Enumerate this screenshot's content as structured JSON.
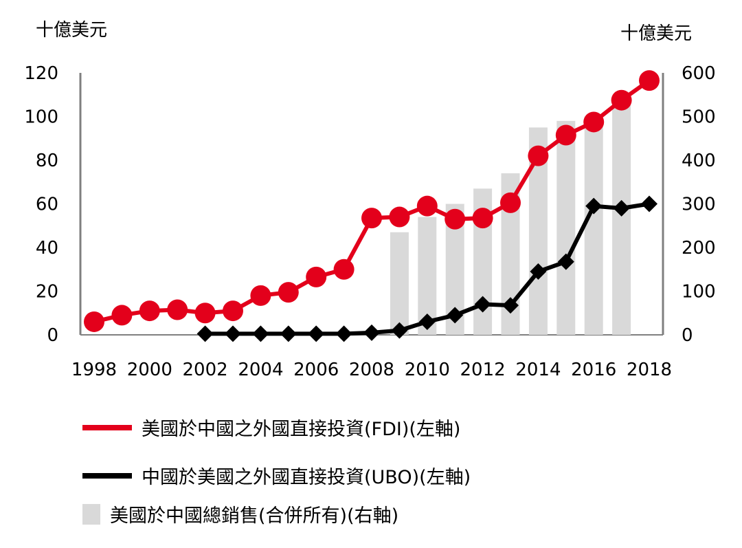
{
  "chart_data": {
    "type": "bar+line",
    "left_axis_unit": "十億美元",
    "right_axis_unit": "十億美元",
    "x": [
      1998,
      1999,
      2000,
      2001,
      2002,
      2003,
      2004,
      2005,
      2006,
      2007,
      2008,
      2009,
      2010,
      2011,
      2012,
      2013,
      2014,
      2015,
      2016,
      2017,
      2018
    ],
    "x_tick_labels": [
      "1998",
      "2000",
      "2002",
      "2004",
      "2006",
      "2008",
      "2010",
      "2012",
      "2014",
      "2016",
      "2018"
    ],
    "left_ylim": [
      0,
      120
    ],
    "left_yticks": [
      0,
      20,
      40,
      60,
      80,
      100,
      120
    ],
    "right_ylim": [
      0,
      600
    ],
    "right_yticks": [
      0,
      100,
      200,
      300,
      400,
      500,
      600
    ],
    "series": [
      {
        "name": "美國於中國之外國直接投資(FDI)(左軸)",
        "type": "line",
        "axis": "left",
        "color": "#e3001b",
        "marker": "circle",
        "values": [
          6,
          9,
          11,
          11.5,
          10,
          11,
          18,
          19.5,
          26.5,
          30,
          53.5,
          54,
          59,
          53,
          53.5,
          60.5,
          82,
          91.5,
          97.5,
          107.5,
          116.5
        ]
      },
      {
        "name": "中國於美國之外國直接投資(UBO)(左軸)",
        "type": "line",
        "axis": "left",
        "color": "#000000",
        "marker": "diamond",
        "values": [
          null,
          null,
          null,
          null,
          0.5,
          0.5,
          0.5,
          0.5,
          0.5,
          0.5,
          1,
          2,
          6,
          9,
          14,
          13.5,
          29,
          33.5,
          59,
          58,
          60
        ]
      },
      {
        "name": "美國於中國總銷售(合併所有)(右軸)",
        "type": "bar",
        "axis": "right",
        "color": "#d9d9d9",
        "values": [
          null,
          null,
          null,
          null,
          null,
          null,
          null,
          null,
          null,
          null,
          null,
          235,
          270,
          300,
          335,
          370,
          475,
          490,
          500,
          535,
          null
        ]
      }
    ],
    "legend_position": "bottom"
  }
}
